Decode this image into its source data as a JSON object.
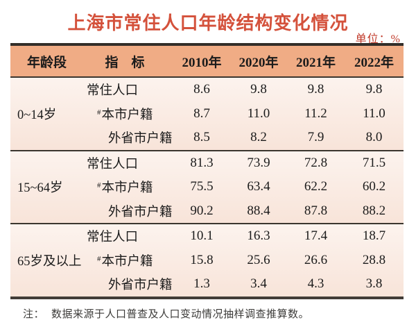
{
  "colors": {
    "title_red": "#D4513B",
    "unit_red": "#C13A2A",
    "header_bg": "#F0AC85",
    "body_bg_top": "#FCF3EE",
    "body_bg_bottom": "#F8E4D9",
    "border_dark": "#332E29"
  },
  "chart_data": {
    "type": "table",
    "title": "上海市常住人口年龄结构变化情况",
    "unit": "单位：%",
    "columns": [
      "年龄段",
      "指　标",
      "2010年",
      "2020年",
      "2021年",
      "2022年"
    ],
    "sections": [
      {
        "age_group": "0~14岁",
        "rows": [
          {
            "prefix": "",
            "indicator": "常住人口",
            "values": [
              "8.6",
              "9.8",
              "9.8",
              "9.8"
            ]
          },
          {
            "prefix": "#",
            "indicator": "本市户籍",
            "values": [
              "8.7",
              "11.0",
              "11.2",
              "11.0"
            ]
          },
          {
            "prefix": "",
            "indicator": "外省市户籍",
            "values": [
              "8.5",
              "8.2",
              "7.9",
              "8.0"
            ]
          }
        ]
      },
      {
        "age_group": "15~64岁",
        "rows": [
          {
            "prefix": "",
            "indicator": "常住人口",
            "values": [
              "81.3",
              "73.9",
              "72.8",
              "71.5"
            ]
          },
          {
            "prefix": "#",
            "indicator": "本市户籍",
            "values": [
              "75.5",
              "63.4",
              "62.2",
              "60.2"
            ]
          },
          {
            "prefix": "",
            "indicator": "外省市户籍",
            "values": [
              "90.2",
              "88.4",
              "87.8",
              "88.2"
            ]
          }
        ]
      },
      {
        "age_group": "65岁及以上",
        "rows": [
          {
            "prefix": "",
            "indicator": "常住人口",
            "values": [
              "10.1",
              "16.3",
              "17.4",
              "18.7"
            ]
          },
          {
            "prefix": "#",
            "indicator": "本市户籍",
            "values": [
              "15.8",
              "25.6",
              "26.6",
              "28.8"
            ]
          },
          {
            "prefix": "",
            "indicator": "外省市户籍",
            "values": [
              "1.3",
              "3.4",
              "4.3",
              "3.8"
            ]
          }
        ]
      }
    ],
    "note_label": "注：",
    "note_text": "数据来源于人口普查及人口变动情况抽样调查推算数。"
  }
}
